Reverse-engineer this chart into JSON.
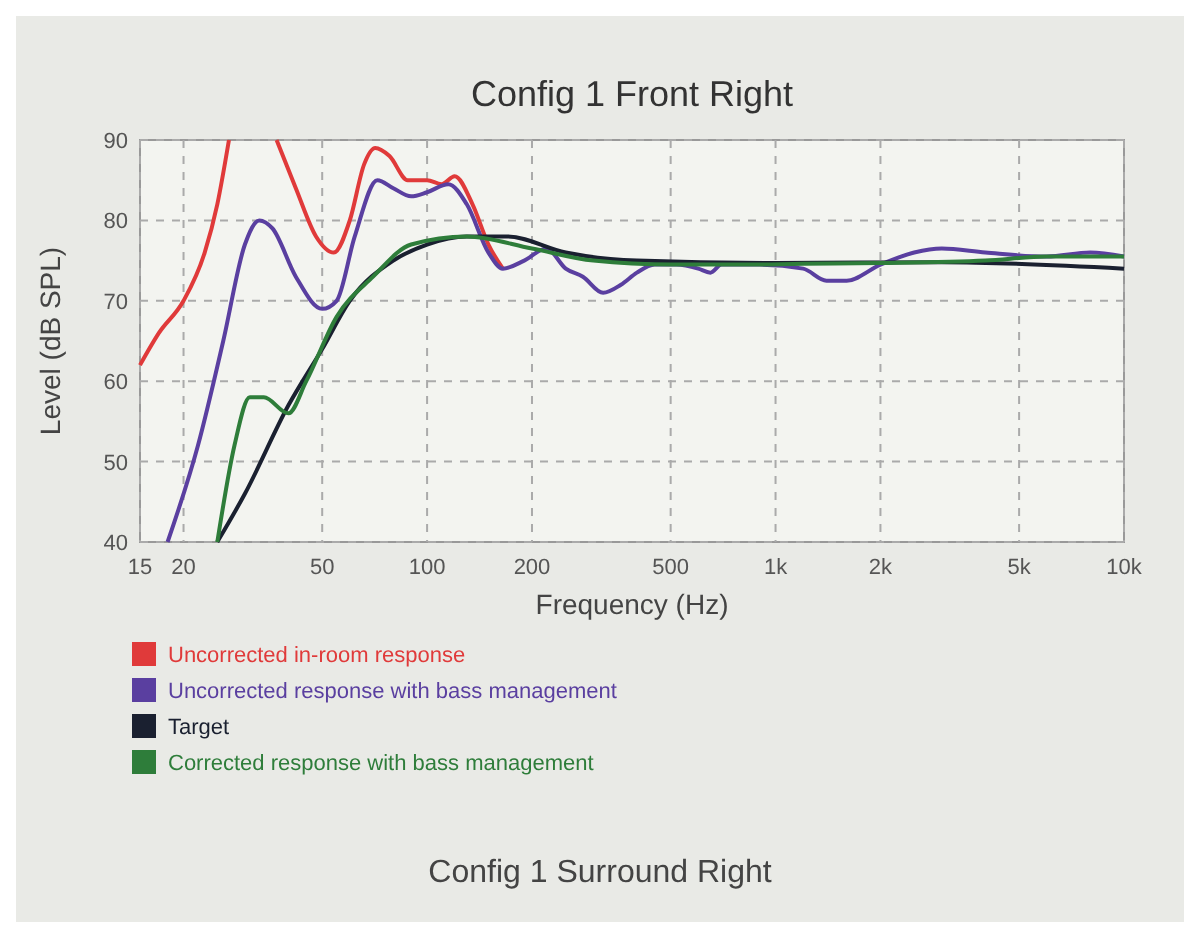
{
  "chart_data": {
    "type": "line",
    "title": "Config 1 Front Right",
    "xlabel": "Frequency (Hz)",
    "ylabel": "Level (dB SPL)",
    "log": "x",
    "xlim": [
      15,
      10000
    ],
    "ylim": [
      40,
      90
    ],
    "xticks": [
      15,
      20,
      50,
      100,
      200,
      500,
      {
        "value": 1000,
        "label": "1k"
      },
      {
        "value": 2000,
        "label": "2k"
      },
      {
        "value": 5000,
        "label": "5k"
      },
      {
        "value": 10000,
        "label": "10k"
      }
    ],
    "yticks": [
      40,
      50,
      60,
      70,
      80,
      90
    ],
    "grid": true,
    "legend": "bottom",
    "line_style": "solid",
    "annotations": [
      "Config 1 Surround Right"
    ],
    "series": [
      {
        "name": "Uncorrected in-room response",
        "color": "#e03a3a",
        "x": [
          15,
          17,
          20,
          23,
          25,
          27,
          32,
          37,
          42,
          48,
          54,
          60,
          66,
          71,
          78,
          88,
          100,
          110,
          120,
          135,
          150,
          165
        ],
        "values": [
          62,
          66,
          70,
          76,
          82,
          90,
          null,
          90,
          84,
          78,
          76,
          80,
          87,
          89,
          88,
          85,
          85,
          84.5,
          85.5,
          82,
          77,
          74
        ]
      },
      {
        "name": "Uncorrected response with bass management",
        "color": "#5a3fa0",
        "x": [
          18,
          22,
          26,
          30,
          33,
          36,
          42,
          50,
          55,
          62,
          72,
          80,
          90,
          100,
          115,
          130,
          150,
          165,
          190,
          220,
          250,
          280,
          320,
          360,
          400,
          450,
          520,
          600,
          650,
          700,
          900,
          1200,
          1400,
          1600,
          2000,
          2500,
          3000,
          4000,
          6000,
          8000,
          10000
        ],
        "values": [
          40,
          52,
          65,
          77,
          80,
          79,
          73,
          69,
          70,
          78,
          85,
          84,
          83,
          83.5,
          84.5,
          82,
          76,
          74,
          75,
          76.5,
          74,
          73,
          71,
          72,
          73.5,
          74.5,
          74.5,
          74,
          73.5,
          74.5,
          74.5,
          74,
          72.5,
          72.5,
          74.5,
          76,
          76.5,
          76,
          75.5,
          76,
          75.5
        ]
      },
      {
        "name": "Target",
        "color": "#1a2030",
        "x": [
          25,
          30,
          40,
          50,
          60,
          80,
          100,
          130,
          170,
          250,
          400,
          1000,
          3000,
          10000
        ],
        "values": [
          40,
          46,
          57,
          64,
          70,
          75,
          77,
          78,
          78,
          76,
          75,
          74.7,
          74.8,
          74
        ]
      },
      {
        "name": "Corrected response with bass management",
        "color": "#2e7d3a",
        "x": [
          25,
          28,
          31,
          34,
          40,
          45,
          55,
          70,
          90,
          130,
          200,
          300,
          500,
          800,
          1200,
          2000,
          4000,
          6000,
          10000
        ],
        "values": [
          40,
          52,
          58,
          58,
          56,
          60,
          68,
          73,
          77,
          78,
          76.5,
          75,
          74.5,
          74.5,
          74.6,
          74.7,
          75,
          75.5,
          75.5
        ]
      }
    ]
  }
}
